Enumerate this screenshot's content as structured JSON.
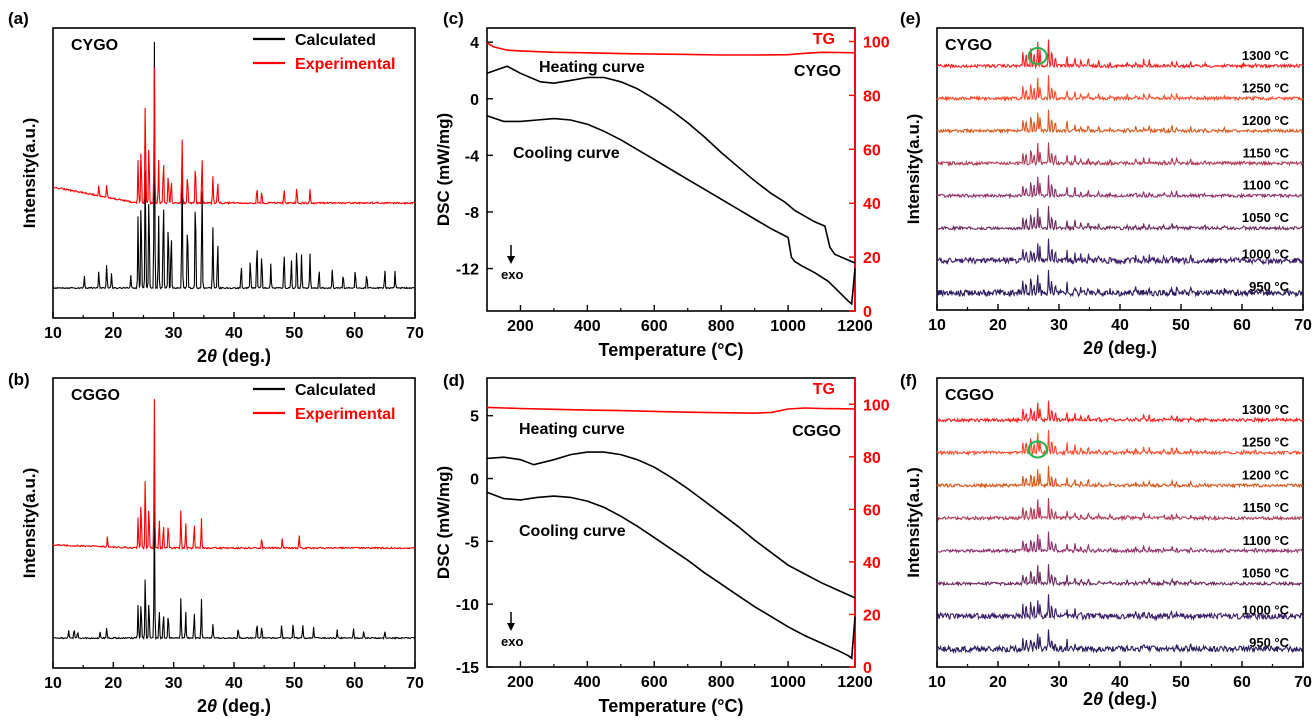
{
  "chart_data": [
    {
      "panel": "(a)",
      "type": "line",
      "label": "CYGO",
      "xlabel": "2θ (deg.)",
      "ylabel": "Intensity(a.u.)",
      "xlim": [
        10,
        70
      ],
      "xticks": [
        10,
        20,
        30,
        40,
        50,
        60,
        70
      ],
      "legend": "top-right",
      "series": [
        {
          "name": "Calculated",
          "color": "#000000",
          "peaks": [
            [
              15.2,
              0.05
            ],
            [
              17.6,
              0.07
            ],
            [
              18.9,
              0.1
            ],
            [
              19.7,
              0.06
            ],
            [
              22.9,
              0.05
            ],
            [
              24.1,
              0.3
            ],
            [
              24.6,
              0.4
            ],
            [
              25.3,
              0.55
            ],
            [
              25.9,
              0.42
            ],
            [
              26.8,
              1.0
            ],
            [
              27.5,
              0.3
            ],
            [
              28.3,
              0.4
            ],
            [
              29.1,
              0.3
            ],
            [
              29.6,
              0.25
            ],
            [
              31.4,
              0.52
            ],
            [
              32.3,
              0.3
            ],
            [
              33.6,
              0.42
            ],
            [
              34.7,
              0.45
            ],
            [
              36.5,
              0.25
            ],
            [
              37.3,
              0.2
            ],
            [
              41.2,
              0.1
            ],
            [
              42.7,
              0.12
            ],
            [
              43.8,
              0.2
            ],
            [
              44.6,
              0.15
            ],
            [
              46.1,
              0.1
            ],
            [
              48.3,
              0.16
            ],
            [
              49.5,
              0.12
            ],
            [
              50.4,
              0.18
            ],
            [
              51.2,
              0.14
            ],
            [
              52.6,
              0.14
            ],
            [
              54.1,
              0.08
            ],
            [
              56.3,
              0.08
            ],
            [
              58.1,
              0.06
            ],
            [
              60.1,
              0.08
            ],
            [
              62.0,
              0.06
            ],
            [
              65.0,
              0.08
            ],
            [
              66.7,
              0.07
            ]
          ]
        },
        {
          "name": "Experimental",
          "color": "#ff0000",
          "peaks": [
            [
              17.6,
              0.05
            ],
            [
              18.9,
              0.06
            ],
            [
              24.1,
              0.2
            ],
            [
              24.6,
              0.28
            ],
            [
              25.3,
              0.5
            ],
            [
              25.9,
              0.3
            ],
            [
              26.8,
              0.62
            ],
            [
              27.5,
              0.2
            ],
            [
              28.3,
              0.22
            ],
            [
              29.1,
              0.15
            ],
            [
              29.6,
              0.12
            ],
            [
              31.4,
              0.3
            ],
            [
              32.3,
              0.15
            ],
            [
              33.6,
              0.2
            ],
            [
              34.7,
              0.22
            ],
            [
              36.5,
              0.12
            ],
            [
              37.3,
              0.1
            ],
            [
              43.8,
              0.08
            ],
            [
              44.6,
              0.06
            ],
            [
              48.3,
              0.07
            ],
            [
              50.4,
              0.08
            ],
            [
              52.6,
              0.06
            ]
          ]
        }
      ]
    },
    {
      "panel": "(b)",
      "type": "line",
      "label": "CGGO",
      "xlabel": "2θ (deg.)",
      "ylabel": "Intensity(a.u.)",
      "xlim": [
        10,
        70
      ],
      "xticks": [
        10,
        20,
        30,
        40,
        50,
        60,
        70
      ],
      "legend": "top-right",
      "series": [
        {
          "name": "Calculated",
          "color": "#000000",
          "peaks": [
            [
              12.6,
              0.06
            ],
            [
              13.5,
              0.07
            ],
            [
              14.1,
              0.05
            ],
            [
              17.8,
              0.05
            ],
            [
              18.9,
              0.08
            ],
            [
              24.1,
              0.25
            ],
            [
              24.6,
              0.3
            ],
            [
              25.3,
              0.5
            ],
            [
              25.9,
              0.3
            ],
            [
              26.8,
              1.0
            ],
            [
              27.6,
              0.22
            ],
            [
              28.3,
              0.2
            ],
            [
              29.1,
              0.2
            ],
            [
              31.2,
              0.3
            ],
            [
              32.0,
              0.2
            ],
            [
              33.4,
              0.2
            ],
            [
              34.6,
              0.3
            ],
            [
              36.5,
              0.1
            ],
            [
              40.7,
              0.08
            ],
            [
              43.8,
              0.12
            ],
            [
              44.6,
              0.1
            ],
            [
              47.9,
              0.1
            ],
            [
              49.8,
              0.12
            ],
            [
              51.4,
              0.1
            ],
            [
              53.2,
              0.08
            ],
            [
              57.1,
              0.06
            ],
            [
              59.8,
              0.07
            ],
            [
              61.5,
              0.05
            ],
            [
              65.0,
              0.05
            ]
          ]
        },
        {
          "name": "Experimental",
          "color": "#ff0000",
          "peaks": [
            [
              19.0,
              0.04
            ],
            [
              24.1,
              0.12
            ],
            [
              24.6,
              0.2
            ],
            [
              25.3,
              0.3
            ],
            [
              25.9,
              0.18
            ],
            [
              26.8,
              0.58
            ],
            [
              27.6,
              0.12
            ],
            [
              28.3,
              0.1
            ],
            [
              29.1,
              0.1
            ],
            [
              31.2,
              0.15
            ],
            [
              32.0,
              0.1
            ],
            [
              33.4,
              0.1
            ],
            [
              34.6,
              0.12
            ],
            [
              44.6,
              0.04
            ],
            [
              48.0,
              0.04
            ],
            [
              50.8,
              0.05
            ]
          ]
        }
      ]
    },
    {
      "panel": "(c)",
      "type": "line",
      "label": "CYGO",
      "xlabel": "Temperature (°C)",
      "ylabel": "DSC (mW/mg)",
      "ylabel_right": "TG",
      "xlim": [
        100,
        1200
      ],
      "ylim": [
        -15,
        5
      ],
      "ylim_right": [
        0,
        105
      ],
      "xticks": [
        200,
        400,
        600,
        800,
        1000,
        1200
      ],
      "yticks": [
        4,
        0,
        -4,
        -8,
        -12
      ],
      "yticks_right": [
        0,
        20,
        40,
        60,
        80,
        100
      ],
      "annotations": [
        "Heating curve",
        "Cooling curve",
        "exo",
        "TG"
      ],
      "series": [
        {
          "name": "Heating curve",
          "color": "#000000",
          "x": [
            100,
            160,
            200,
            260,
            300,
            350,
            400,
            450,
            500,
            550,
            600,
            650,
            700,
            750,
            800,
            850,
            900,
            950,
            990,
            1020,
            1050,
            1080,
            1110,
            1125,
            1140,
            1180,
            1200
          ],
          "y": [
            1.8,
            2.3,
            1.8,
            1.2,
            1.1,
            1.3,
            1.5,
            1.5,
            1.2,
            0.7,
            0,
            -0.8,
            -1.7,
            -2.7,
            -3.8,
            -4.8,
            -5.8,
            -6.7,
            -7.3,
            -7.9,
            -8.3,
            -8.7,
            -9.0,
            -10.5,
            -11.0,
            -11.4,
            -11.6
          ]
        },
        {
          "name": "Cooling curve",
          "color": "#000000",
          "x": [
            100,
            150,
            200,
            250,
            300,
            350,
            400,
            450,
            500,
            550,
            600,
            650,
            700,
            750,
            800,
            850,
            900,
            950,
            1000,
            1010,
            1020,
            1040,
            1080,
            1120,
            1150,
            1180,
            1190,
            1200
          ],
          "y": [
            -1.2,
            -1.6,
            -1.6,
            -1.5,
            -1.4,
            -1.5,
            -1.8,
            -2.3,
            -2.9,
            -3.6,
            -4.3,
            -5.0,
            -5.7,
            -6.4,
            -7.1,
            -7.8,
            -8.5,
            -9.2,
            -9.8,
            -11.2,
            -11.5,
            -11.8,
            -12.3,
            -12.9,
            -13.6,
            -14.3,
            -14.5,
            -12
          ]
        },
        {
          "name": "TG",
          "color": "#ff0000",
          "axis": "right",
          "x": [
            100,
            120,
            160,
            200,
            300,
            400,
            500,
            600,
            700,
            800,
            900,
            1000,
            1050,
            1100,
            1150,
            1200
          ],
          "y": [
            99.5,
            98,
            96.8,
            96.5,
            96,
            95.8,
            95.5,
            95.3,
            95.2,
            95,
            95,
            95.1,
            95.6,
            96,
            95.9,
            95.8
          ]
        }
      ]
    },
    {
      "panel": "(d)",
      "type": "line",
      "label": "CGGO",
      "xlabel": "Temperature (°C)",
      "ylabel": "DSC (mW/mg)",
      "ylabel_right": "TG",
      "xlim": [
        100,
        1200
      ],
      "ylim": [
        -15,
        8
      ],
      "ylim_right": [
        0,
        110
      ],
      "xticks": [
        200,
        400,
        600,
        800,
        1000,
        1200
      ],
      "yticks": [
        5,
        0,
        -5,
        -10,
        -15
      ],
      "yticks_right": [
        0,
        20,
        40,
        60,
        80,
        100
      ],
      "annotations": [
        "Heating curve",
        "Cooling curve",
        "exo",
        "TG"
      ],
      "series": [
        {
          "name": "Heating curve",
          "color": "#000000",
          "x": [
            100,
            150,
            200,
            240,
            300,
            350,
            400,
            450,
            500,
            550,
            600,
            650,
            700,
            750,
            800,
            850,
            900,
            950,
            1000,
            1050,
            1100,
            1150,
            1200
          ],
          "y": [
            1.6,
            1.7,
            1.5,
            1.1,
            1.5,
            1.9,
            2.1,
            2.1,
            1.9,
            1.5,
            0.9,
            0.1,
            -0.8,
            -1.8,
            -2.8,
            -3.8,
            -4.9,
            -5.9,
            -6.9,
            -7.6,
            -8.3,
            -8.9,
            -9.5
          ]
        },
        {
          "name": "Cooling curve",
          "color": "#000000",
          "x": [
            100,
            150,
            200,
            250,
            300,
            350,
            400,
            450,
            500,
            550,
            600,
            650,
            700,
            750,
            800,
            850,
            900,
            950,
            1000,
            1050,
            1100,
            1150,
            1180,
            1190,
            1200
          ],
          "y": [
            -1.1,
            -1.6,
            -1.7,
            -1.5,
            -1.4,
            -1.5,
            -1.8,
            -2.3,
            -3.0,
            -3.8,
            -4.7,
            -5.6,
            -6.5,
            -7.5,
            -8.4,
            -9.3,
            -10.2,
            -11.0,
            -11.8,
            -12.5,
            -13.1,
            -13.7,
            -14.1,
            -14.3,
            -11.0
          ]
        },
        {
          "name": "TG",
          "color": "#ff0000",
          "axis": "right",
          "x": [
            100,
            200,
            300,
            400,
            500,
            600,
            700,
            800,
            900,
            950,
            1000,
            1050,
            1100,
            1150,
            1200
          ],
          "y": [
            98.8,
            98.4,
            98.1,
            97.8,
            97.6,
            97.3,
            97.0,
            96.8,
            96.6,
            96.9,
            98.2,
            98.6,
            98.4,
            98.3,
            98.2
          ]
        }
      ]
    },
    {
      "panel": "(e)",
      "type": "line",
      "label": "CYGO",
      "xlabel": "2θ (deg.)",
      "ylabel": "Intensity(a.u.)",
      "xlim": [
        10,
        70
      ],
      "xticks": [
        10,
        20,
        30,
        40,
        50,
        60,
        70
      ],
      "series": [
        {
          "name": "1300 °C",
          "color": "#ff1f1f"
        },
        {
          "name": "1250 °C",
          "color": "#ff4a2a"
        },
        {
          "name": "1200 °C",
          "color": "#d9581c"
        },
        {
          "name": "1150 °C",
          "color": "#b13a55"
        },
        {
          "name": "1100 °C",
          "color": "#90306c"
        },
        {
          "name": "1050 °C",
          "color": "#6c2a5e"
        },
        {
          "name": "1000 °C",
          "color": "#3c1e6a"
        },
        {
          "name": "950 °C",
          "color": "#2b1b5e"
        }
      ]
    },
    {
      "panel": "(f)",
      "type": "line",
      "label": "CGGO",
      "xlabel": "2θ (deg.)",
      "ylabel": "Intensity(a.u.)",
      "xlim": [
        10,
        70
      ],
      "xticks": [
        10,
        20,
        30,
        40,
        50,
        60,
        70
      ],
      "series": [
        {
          "name": "1300 °C",
          "color": "#ff1f1f"
        },
        {
          "name": "1250 °C",
          "color": "#ff4a2a"
        },
        {
          "name": "1200 °C",
          "color": "#d9581c"
        },
        {
          "name": "1150 °C",
          "color": "#b13a55"
        },
        {
          "name": "1100 °C",
          "color": "#90306c"
        },
        {
          "name": "1050 °C",
          "color": "#6c2a5e"
        },
        {
          "name": "1000 °C",
          "color": "#3c1e6a"
        },
        {
          "name": "950 °C",
          "color": "#2b1b5e"
        }
      ]
    }
  ]
}
